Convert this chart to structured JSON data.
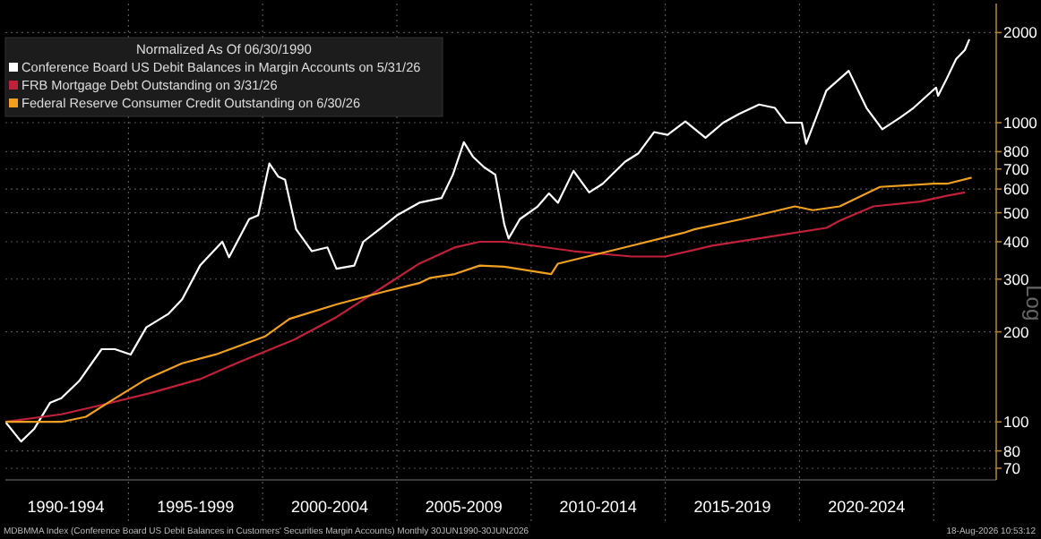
{
  "chart_data": {
    "type": "line",
    "log": true,
    "grid": true,
    "legend": "top left",
    "legend_title": "Normalized As Of 06/30/1990",
    "ylabel": "Log",
    "xlim": [
      "1990-06-01",
      "2027-05-01"
    ],
    "xticks": [
      {
        "value": "1992-09-01",
        "label": "1990-1994"
      },
      {
        "value": "1995-01-01",
        "label": null
      },
      {
        "value": "1997-07-01",
        "label": "1995-1999"
      },
      {
        "value": "2000-01-01",
        "label": null
      },
      {
        "value": "2002-07-01",
        "label": "2000-2004"
      },
      {
        "value": "2005-01-01",
        "label": null
      },
      {
        "value": "2007-07-01",
        "label": "2005-2009"
      },
      {
        "value": "2010-01-01",
        "label": null
      },
      {
        "value": "2012-07-01",
        "label": "2010-2014"
      },
      {
        "value": "2015-01-01",
        "label": null
      },
      {
        "value": "2017-07-01",
        "label": "2015-2019"
      },
      {
        "value": "2020-01-01",
        "label": null
      },
      {
        "value": "2022-07-01",
        "label": "2020-2024"
      },
      {
        "value": "2025-01-01",
        "label": null
      }
    ],
    "ylim": [
      64,
      2500
    ],
    "yticks": [
      70,
      80,
      100,
      200,
      300,
      400,
      500,
      600,
      700,
      800,
      1000,
      2000
    ],
    "annotations": [
      "MDBMMA Index (Conference Board US Debit Balances in Customers' Securities Margin Accounts) Monthly 30JUN1990-30JUN2026",
      "18-Aug-2026 10:53:12"
    ],
    "series": [
      {
        "name": "Conference Board US Debit Balances in Margin Accounts on 5/31/26",
        "color": "#ffffff",
        "x": [
          "1990-06",
          "1991-01",
          "1991-07",
          "1992-02",
          "1992-07",
          "1993-03",
          "1994-01",
          "1994-07",
          "1995-02",
          "1995-09",
          "1996-07",
          "1997-01",
          "1997-09",
          "1998-07",
          "1998-10",
          "1999-07",
          "1999-11",
          "2000-04",
          "2000-08",
          "2000-11",
          "2001-04",
          "2001-11",
          "2002-06",
          "2002-10",
          "2003-06",
          "2003-10",
          "2004-06",
          "2005-01",
          "2005-11",
          "2006-09",
          "2007-02",
          "2007-07",
          "2007-11",
          "2008-04",
          "2008-09",
          "2009-01",
          "2009-03",
          "2009-08",
          "2010-04",
          "2010-09",
          "2011-01",
          "2011-08",
          "2012-03",
          "2012-09",
          "2013-07",
          "2014-01",
          "2014-08",
          "2015-02",
          "2015-10",
          "2016-07",
          "2017-03",
          "2017-10",
          "2018-07",
          "2019-02",
          "2019-07",
          "2020-02",
          "2020-04",
          "2021-01",
          "2021-11",
          "2022-07",
          "2023-02",
          "2023-10",
          "2024-04",
          "2025-02",
          "2025-03",
          "2025-07",
          "2025-11",
          "2026-03",
          "2026-05"
        ],
        "values": [
          100,
          86,
          95,
          116,
          120,
          137,
          175,
          175,
          168,
          207,
          230,
          257,
          333,
          400,
          355,
          476,
          490,
          730,
          660,
          645,
          440,
          372,
          383,
          325,
          333,
          400,
          445,
          490,
          540,
          560,
          670,
          860,
          770,
          710,
          670,
          457,
          410,
          476,
          525,
          580,
          540,
          690,
          585,
          625,
          740,
          790,
          930,
          910,
          1010,
          890,
          1000,
          1070,
          1150,
          1120,
          1000,
          1000,
          850,
          1280,
          1490,
          1120,
          950,
          1040,
          1120,
          1310,
          1230,
          1410,
          1630,
          1750,
          1900
        ]
      },
      {
        "name": "FRB Mortgage Debt Outstanding on 3/31/26",
        "color": "#c0203a",
        "x": [
          "1990-06",
          "1992-07",
          "1993-11",
          "1995-11",
          "1997-09",
          "1999-03",
          "2001-03",
          "2002-10",
          "2004-07",
          "2005-11",
          "2007-03",
          "2008-02",
          "2009-01",
          "2011-08",
          "2013-10",
          "2015-01",
          "2016-10",
          "2019-01",
          "2021-01",
          "2021-07",
          "2022-10",
          "2024-07",
          "2025-07",
          "2026-03"
        ],
        "values": [
          100,
          106,
          113,
          125,
          139,
          159,
          188,
          224,
          283,
          338,
          383,
          400,
          400,
          372,
          357,
          357,
          388,
          417,
          445,
          470,
          525,
          545,
          570,
          585
        ]
      },
      {
        "name": "Federal Reserve Consumer Credit Outstanding on 6/30/26",
        "color": "#f0a020",
        "x": [
          "1990-06",
          "1992-07",
          "1993-06",
          "1994-04",
          "1995-09",
          "1997-01",
          "1998-04",
          "2000-02",
          "2001-01",
          "2002-10",
          "2004-07",
          "2005-11",
          "2006-04",
          "2007-03",
          "2008-02",
          "2009-01",
          "2010-10",
          "2011-01",
          "2013-07",
          "2015-09",
          "2016-02",
          "2017-11",
          "2019-11",
          "2020-07",
          "2021-07",
          "2023-01",
          "2025-01",
          "2025-07",
          "2026-06"
        ],
        "values": [
          100,
          100,
          104,
          116,
          139,
          157,
          168,
          193,
          221,
          247,
          272,
          291,
          303,
          312,
          333,
          330,
          312,
          338,
          383,
          428,
          440,
          476,
          525,
          510,
          525,
          610,
          625,
          625,
          655
        ]
      }
    ]
  }
}
